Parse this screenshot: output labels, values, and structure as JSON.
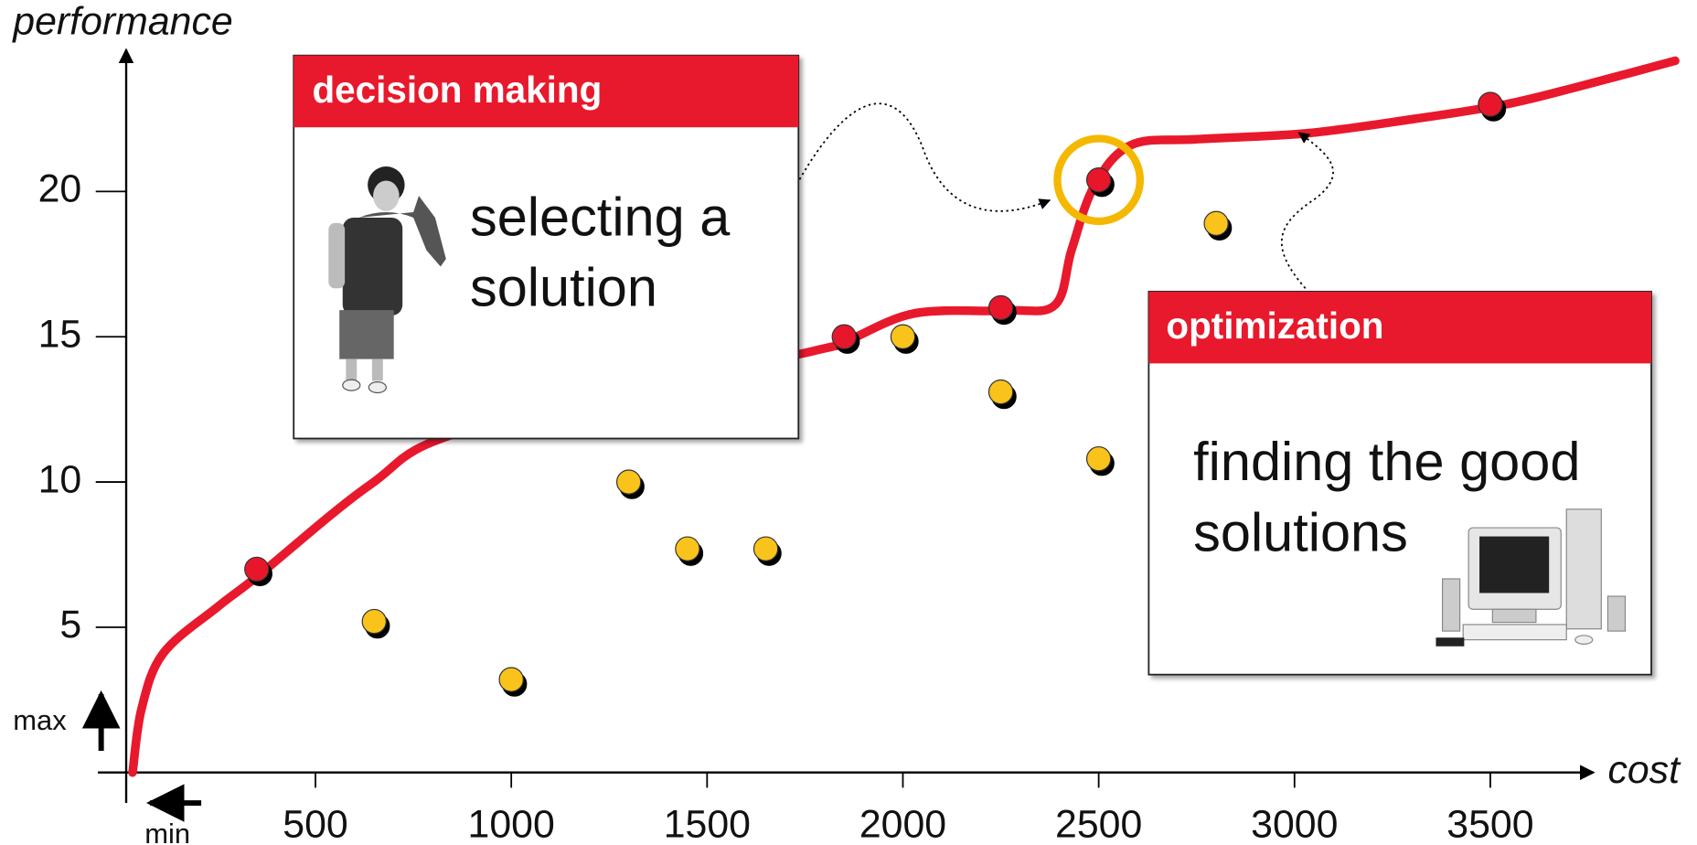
{
  "chart_data": {
    "type": "scatter",
    "x_label": "cost",
    "y_label": "performance",
    "y_hint": "max",
    "x_hint": "min",
    "xlim": [
      -50,
      3750
    ],
    "ylim": [
      0,
      24.7
    ],
    "xticks": [
      500,
      1000,
      1500,
      2000,
      2500,
      3000,
      3500
    ],
    "yticks": [
      5,
      10,
      15,
      20
    ],
    "series": [
      {
        "color": "#e8192c",
        "line": true,
        "x": [
          33,
          56,
          111,
          250,
          356,
          639,
          889,
          1736,
          1847,
          2028,
          2264,
          2389,
          2431,
          2489,
          2583,
          2750,
          3028,
          3306,
          3539,
          3722,
          3972
        ],
        "values": [
          0,
          2.2,
          4.1,
          5.7,
          6.8,
          9.9,
          11.8,
          14.4,
          14.8,
          15.8,
          15.9,
          16.1,
          18,
          20.2,
          21.6,
          21.8,
          22,
          22.5,
          23,
          23.6,
          24.5
        ]
      },
      {
        "color": "#e8192c",
        "highlight": 3,
        "x": [
          350,
          1850,
          2250,
          2500,
          3500
        ],
        "values": [
          7,
          15,
          16,
          20.4,
          23
        ]
      },
      {
        "color": "#f9c31f",
        "x": [
          650,
          1000,
          1300,
          1450,
          1650,
          2000,
          2250,
          2500,
          2800
        ],
        "values": [
          5.2,
          3.2,
          10,
          7.7,
          7.7,
          15,
          13.1,
          10.8,
          18.9
        ]
      }
    ],
    "annotations": [
      {
        "title": "decision making",
        "lines": [
          "selecting a",
          "solution"
        ]
      },
      {
        "title": "optimization",
        "lines": [
          "finding the good",
          "solutions"
        ]
      }
    ]
  }
}
